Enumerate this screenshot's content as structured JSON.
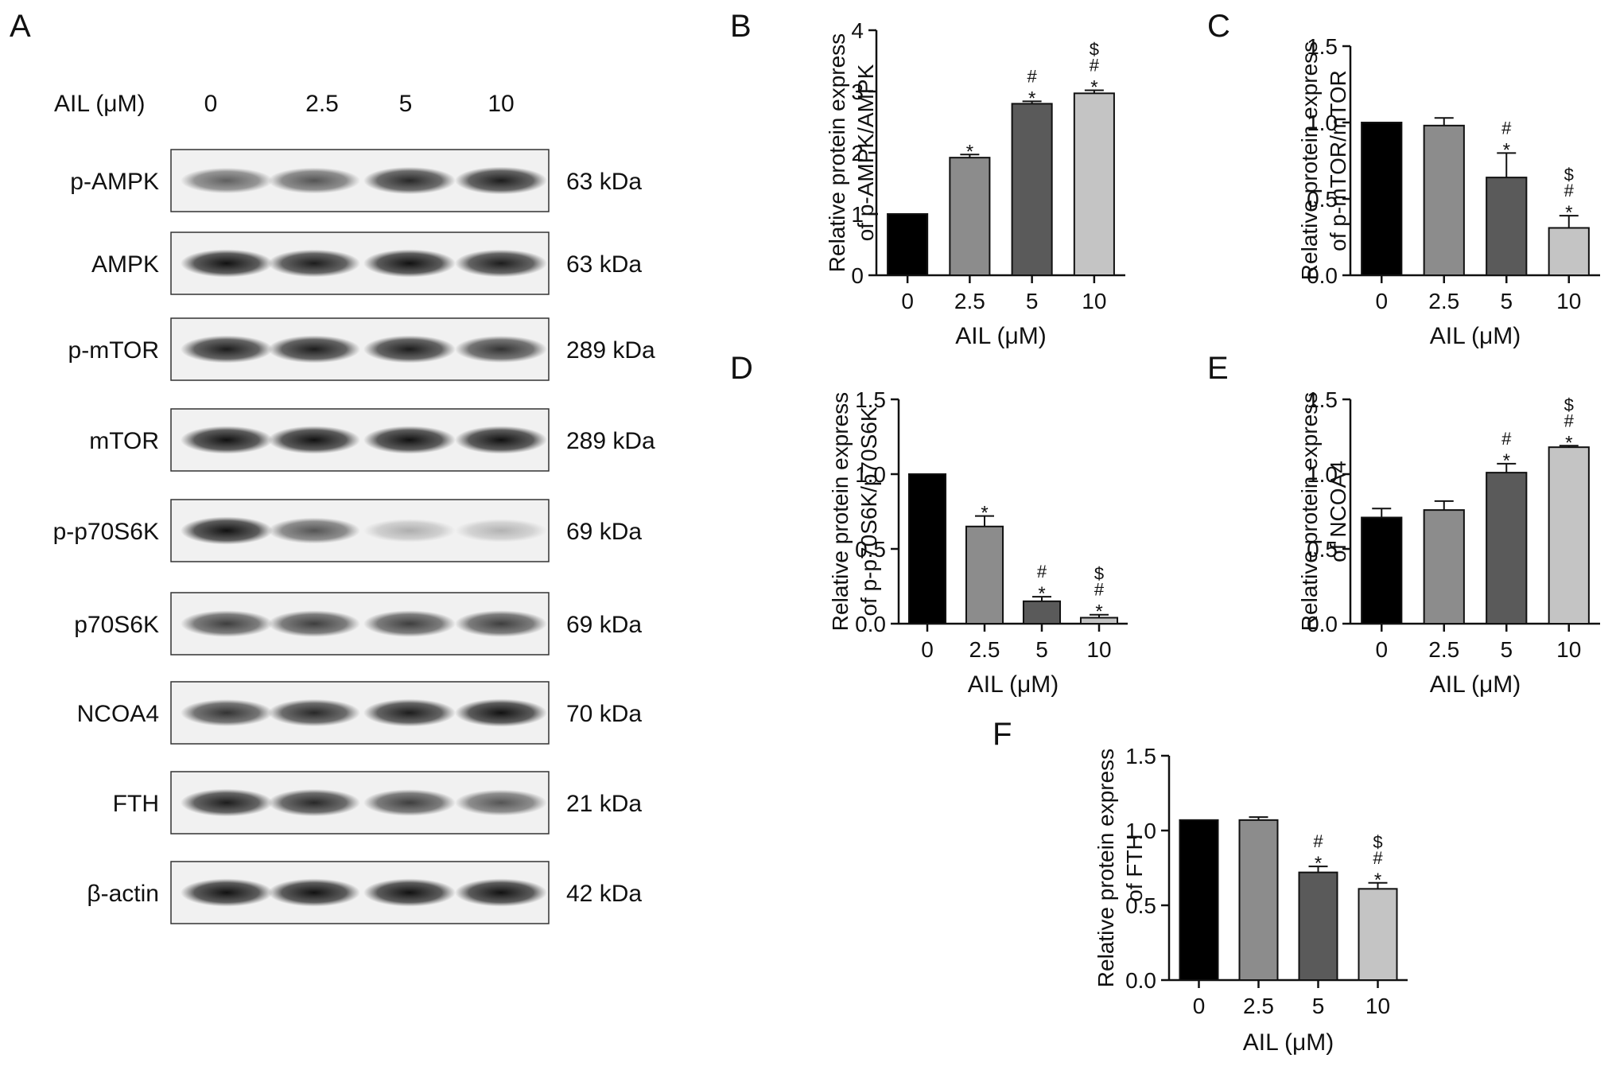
{
  "panel_a": {
    "letter": "A",
    "dose_label": "AIL (μM)",
    "doses": [
      "0",
      "2.5",
      "5",
      "10"
    ],
    "blots": [
      {
        "protein": "p-AMPK",
        "size": "63 kDa",
        "intensities": [
          0.55,
          0.6,
          0.8,
          0.85
        ]
      },
      {
        "protein": "AMPK",
        "size": "63 kDa",
        "intensities": [
          0.9,
          0.85,
          0.9,
          0.85
        ]
      },
      {
        "protein": "p-mTOR",
        "size": "289 kDa",
        "intensities": [
          0.85,
          0.85,
          0.85,
          0.75
        ]
      },
      {
        "protein": "mTOR",
        "size": "289 kDa",
        "intensities": [
          0.9,
          0.9,
          0.9,
          0.9
        ]
      },
      {
        "protein": "p-p70S6K",
        "size": "69 kDa",
        "intensities": [
          0.9,
          0.6,
          0.2,
          0.18
        ]
      },
      {
        "protein": "p70S6K",
        "size": "69 kDa",
        "intensities": [
          0.7,
          0.7,
          0.7,
          0.7
        ]
      },
      {
        "protein": "NCOA4",
        "size": "70 kDa",
        "intensities": [
          0.75,
          0.8,
          0.85,
          0.9
        ]
      },
      {
        "protein": "FTH",
        "size": "21 kDa",
        "intensities": [
          0.85,
          0.8,
          0.7,
          0.6
        ]
      },
      {
        "protein": "β-actin",
        "size": "42 kDa",
        "intensities": [
          0.9,
          0.9,
          0.9,
          0.9
        ]
      }
    ]
  },
  "chart_data": [
    {
      "panel": "B",
      "type": "bar",
      "ylabel_lines": [
        "Relative protein express",
        "of p-AMPK/AMPK"
      ],
      "xlabel": "AIL (μM)",
      "categories": [
        "0",
        "2.5",
        "5",
        "10"
      ],
      "values": [
        1.0,
        1.92,
        2.8,
        2.97
      ],
      "errors": [
        0,
        0.05,
        0.04,
        0.05
      ],
      "significance": [
        "",
        "*",
        "#\n*",
        "$\n#\n*"
      ],
      "ylim": [
        0,
        4
      ],
      "yticks": [
        "0",
        "1",
        "2",
        "3",
        "4"
      ],
      "colors": [
        "#000000",
        "#8c8c8c",
        "#5a5a5a",
        "#c4c4c4"
      ]
    },
    {
      "panel": "C",
      "type": "bar",
      "ylabel_lines": [
        "Relative protein express",
        "of p-mTOR/mTOR"
      ],
      "xlabel": "AIL (μM)",
      "categories": [
        "0",
        "2.5",
        "5",
        "10"
      ],
      "values": [
        1.0,
        0.98,
        0.64,
        0.31
      ],
      "errors": [
        0,
        0.05,
        0.16,
        0.08
      ],
      "significance": [
        "",
        "",
        "#\n*",
        "$\n#\n*"
      ],
      "ylim": [
        0,
        1.5
      ],
      "yticks": [
        "0.0",
        "0.5",
        "1.0",
        "1.5"
      ],
      "colors": [
        "#000000",
        "#8c8c8c",
        "#5a5a5a",
        "#c4c4c4"
      ]
    },
    {
      "panel": "D",
      "type": "bar",
      "ylabel_lines": [
        "Relative protein express",
        "of p-p70S6K/p70S6K"
      ],
      "xlabel": "AIL (μM)",
      "categories": [
        "0",
        "2.5",
        "5",
        "10"
      ],
      "values": [
        1.0,
        0.65,
        0.15,
        0.04
      ],
      "errors": [
        0,
        0.07,
        0.03,
        0.02
      ],
      "significance": [
        "",
        "*",
        "#\n*",
        "$\n#\n*"
      ],
      "ylim": [
        0,
        1.5
      ],
      "yticks": [
        "0.0",
        "0.5",
        "1.0",
        "1.5"
      ],
      "colors": [
        "#000000",
        "#8c8c8c",
        "#5a5a5a",
        "#c4c4c4"
      ]
    },
    {
      "panel": "E",
      "type": "bar",
      "ylabel_lines": [
        "Relative protein express",
        "of NCOA4"
      ],
      "xlabel": "AIL (μM)",
      "categories": [
        "0",
        "2.5",
        "5",
        "10"
      ],
      "values": [
        0.71,
        0.76,
        1.01,
        1.18
      ],
      "errors": [
        0.06,
        0.06,
        0.06,
        0.01
      ],
      "significance": [
        "",
        "",
        "#\n*",
        "$\n#\n*"
      ],
      "ylim": [
        0,
        1.5
      ],
      "yticks": [
        "0.0",
        "0.5",
        "1.0",
        "1.5"
      ],
      "colors": [
        "#000000",
        "#8c8c8c",
        "#5a5a5a",
        "#c4c4c4"
      ]
    },
    {
      "panel": "F",
      "type": "bar",
      "ylabel_lines": [
        "Relative protein express",
        "of FTH"
      ],
      "xlabel": "AIL (μM)",
      "categories": [
        "0",
        "2.5",
        "5",
        "10"
      ],
      "values": [
        1.07,
        1.07,
        0.72,
        0.61
      ],
      "errors": [
        0,
        0.02,
        0.04,
        0.04
      ],
      "significance": [
        "",
        "",
        "#\n*",
        "$\n#\n*"
      ],
      "ylim": [
        0,
        1.5
      ],
      "yticks": [
        "0.0",
        "0.5",
        "1.0",
        "1.5"
      ],
      "colors": [
        "#000000",
        "#8c8c8c",
        "#5a5a5a",
        "#c4c4c4"
      ]
    }
  ]
}
